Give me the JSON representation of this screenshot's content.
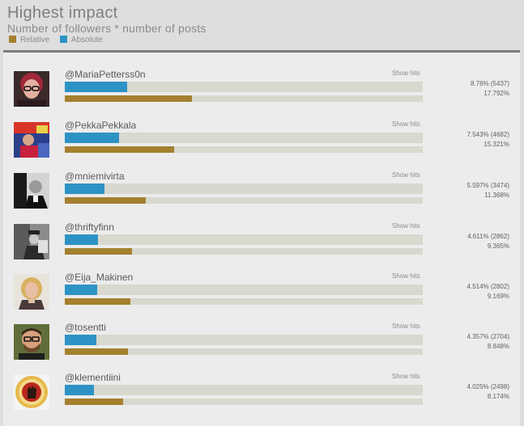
{
  "header": {
    "title": "Highest impact",
    "subtitle": "Number of followers * number of posts",
    "legend": [
      {
        "label": "Relative",
        "color": "#a4802e"
      },
      {
        "label": "Absolute",
        "color": "#2d93c4"
      }
    ]
  },
  "rows": [
    {
      "handle": "@MariaPetterss0n",
      "show_hits": "Show hits",
      "absolute_text": "8.76% (5437)",
      "relative_text": "17.792%",
      "absolute_pct": 8.76,
      "relative_pct": 17.792,
      "avatar": "woman-red-hair-avatar"
    },
    {
      "handle": "@PekkaPekkala",
      "show_hits": "Show hits",
      "absolute_text": "7.543% (4682)",
      "relative_text": "15.321%",
      "absolute_pct": 7.543,
      "relative_pct": 15.321,
      "avatar": "man-red-shirt-avatar"
    },
    {
      "handle": "@mniemivirta",
      "show_hits": "Show hits",
      "absolute_text": "5.597% (3474)",
      "relative_text": "11.368%",
      "absolute_pct": 5.597,
      "relative_pct": 11.368,
      "avatar": "man-bw-avatar"
    },
    {
      "handle": "@thriftyfinn",
      "show_hits": "Show hits",
      "absolute_text": "4.611% (2862)",
      "relative_text": "9.365%",
      "absolute_pct": 4.611,
      "relative_pct": 9.365,
      "avatar": "man-hat-bw-avatar"
    },
    {
      "handle": "@Eija_Makinen",
      "show_hits": "Show hits",
      "absolute_text": "4.514% (2802)",
      "relative_text": "9.169%",
      "absolute_pct": 4.514,
      "relative_pct": 9.169,
      "avatar": "woman-blonde-avatar"
    },
    {
      "handle": "@tosentti",
      "show_hits": "Show hits",
      "absolute_text": "4.357% (2704)",
      "relative_text": "8.848%",
      "absolute_pct": 4.357,
      "relative_pct": 8.848,
      "avatar": "man-glasses-beard-avatar"
    },
    {
      "handle": "@klementiini",
      "show_hits": "Show hits",
      "absolute_text": "4.025% (2498)",
      "relative_text": "8.174%",
      "absolute_pct": 4.025,
      "relative_pct": 8.174,
      "avatar": "fist-badge-avatar"
    }
  ]
}
